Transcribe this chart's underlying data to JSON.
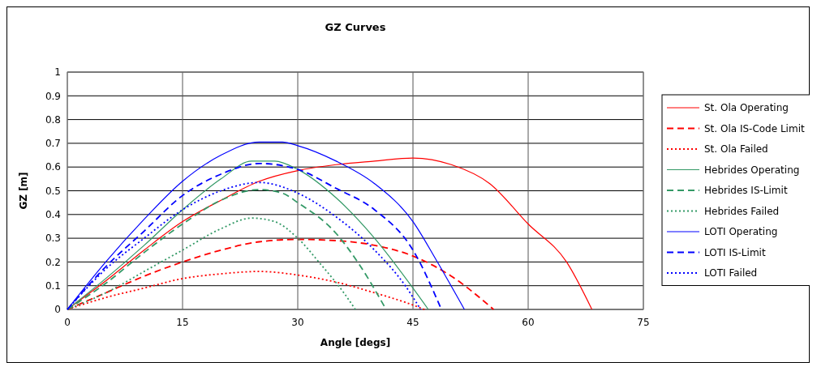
{
  "chart_data": {
    "type": "line",
    "title": "GZ Curves",
    "xlabel": "Angle [degs]",
    "ylabel": "GZ [m]",
    "xlim": [
      0,
      75
    ],
    "xticks": [
      0,
      15,
      30,
      45,
      60,
      75
    ],
    "ylim": [
      0,
      1
    ],
    "yticks": [
      0,
      0.1,
      0.2,
      0.3,
      0.4,
      0.5,
      0.6,
      0.7,
      0.8,
      0.9,
      1
    ],
    "grid": true,
    "legend": "right",
    "marker": "none",
    "series": [
      {
        "name": "St. Ola Operating",
        "color": "#ff0000",
        "line_style": "solid",
        "x": [
          0,
          5,
          10,
          15,
          20,
          25,
          30,
          35,
          40,
          45,
          50,
          55,
          60,
          65,
          68.3
        ],
        "values": [
          0,
          0.12,
          0.25,
          0.37,
          0.46,
          0.54,
          0.585,
          0.61,
          0.625,
          0.638,
          0.61,
          0.53,
          0.36,
          0.2,
          0
        ]
      },
      {
        "name": "St. Ola IS-Code Limit",
        "color": "#ff0000",
        "line_style": "dashed",
        "x": [
          0,
          5,
          10,
          15,
          20,
          25,
          30,
          35,
          40,
          45,
          50,
          55.5
        ],
        "values": [
          0,
          0.07,
          0.14,
          0.2,
          0.25,
          0.285,
          0.295,
          0.29,
          0.27,
          0.225,
          0.14,
          0
        ]
      },
      {
        "name": "St. Ola Failed",
        "color": "#ff0000",
        "line_style": "dotted",
        "x": [
          0,
          5,
          10,
          15,
          20,
          25,
          30,
          35,
          40,
          44,
          46.5
        ],
        "values": [
          0,
          0.05,
          0.09,
          0.13,
          0.15,
          0.16,
          0.145,
          0.115,
          0.07,
          0.03,
          0
        ]
      },
      {
        "name": "Hebrides Operating",
        "color": "#339966",
        "line_style": "solid",
        "x": [
          0,
          5,
          10,
          15,
          20,
          24,
          27,
          30,
          35,
          40,
          45,
          47
        ],
        "values": [
          0,
          0.13,
          0.27,
          0.42,
          0.55,
          0.625,
          0.625,
          0.59,
          0.47,
          0.3,
          0.09,
          0
        ]
      },
      {
        "name": "Hebrides IS-Limit",
        "color": "#339966",
        "line_style": "dashed",
        "x": [
          0,
          5,
          10,
          15,
          20,
          25,
          28,
          30,
          35,
          38,
          41.5
        ],
        "values": [
          0,
          0.11,
          0.24,
          0.36,
          0.46,
          0.505,
          0.49,
          0.45,
          0.32,
          0.19,
          0
        ]
      },
      {
        "name": "Hebrides Failed",
        "color": "#339966",
        "line_style": "dotted",
        "x": [
          0,
          5,
          10,
          15,
          20,
          24,
          27,
          30,
          33,
          36,
          37.5
        ],
        "values": [
          0,
          0.07,
          0.16,
          0.25,
          0.34,
          0.385,
          0.37,
          0.3,
          0.19,
          0.07,
          0
        ]
      },
      {
        "name": "LOTI Operating",
        "color": "#0000ff",
        "line_style": "solid",
        "x": [
          0,
          5,
          10,
          15,
          20,
          25,
          28,
          30,
          35,
          40,
          45,
          48,
          51.7
        ],
        "values": [
          0,
          0.2,
          0.38,
          0.54,
          0.65,
          0.705,
          0.705,
          0.69,
          0.625,
          0.53,
          0.37,
          0.21,
          0
        ]
      },
      {
        "name": "LOTI IS-Limit",
        "color": "#0000ff",
        "line_style": "dashed",
        "x": [
          0,
          5,
          10,
          15,
          20,
          25,
          30,
          35,
          40,
          45,
          48.7
        ],
        "values": [
          0,
          0.18,
          0.33,
          0.48,
          0.57,
          0.615,
          0.59,
          0.51,
          0.42,
          0.25,
          0
        ]
      },
      {
        "name": "LOTI Failed",
        "color": "#0000ff",
        "line_style": "dotted",
        "x": [
          0,
          5,
          10,
          15,
          20,
          25,
          30,
          35,
          40,
          44,
          46
        ],
        "values": [
          0,
          0.17,
          0.3,
          0.42,
          0.5,
          0.535,
          0.49,
          0.39,
          0.25,
          0.1,
          0
        ]
      }
    ]
  }
}
